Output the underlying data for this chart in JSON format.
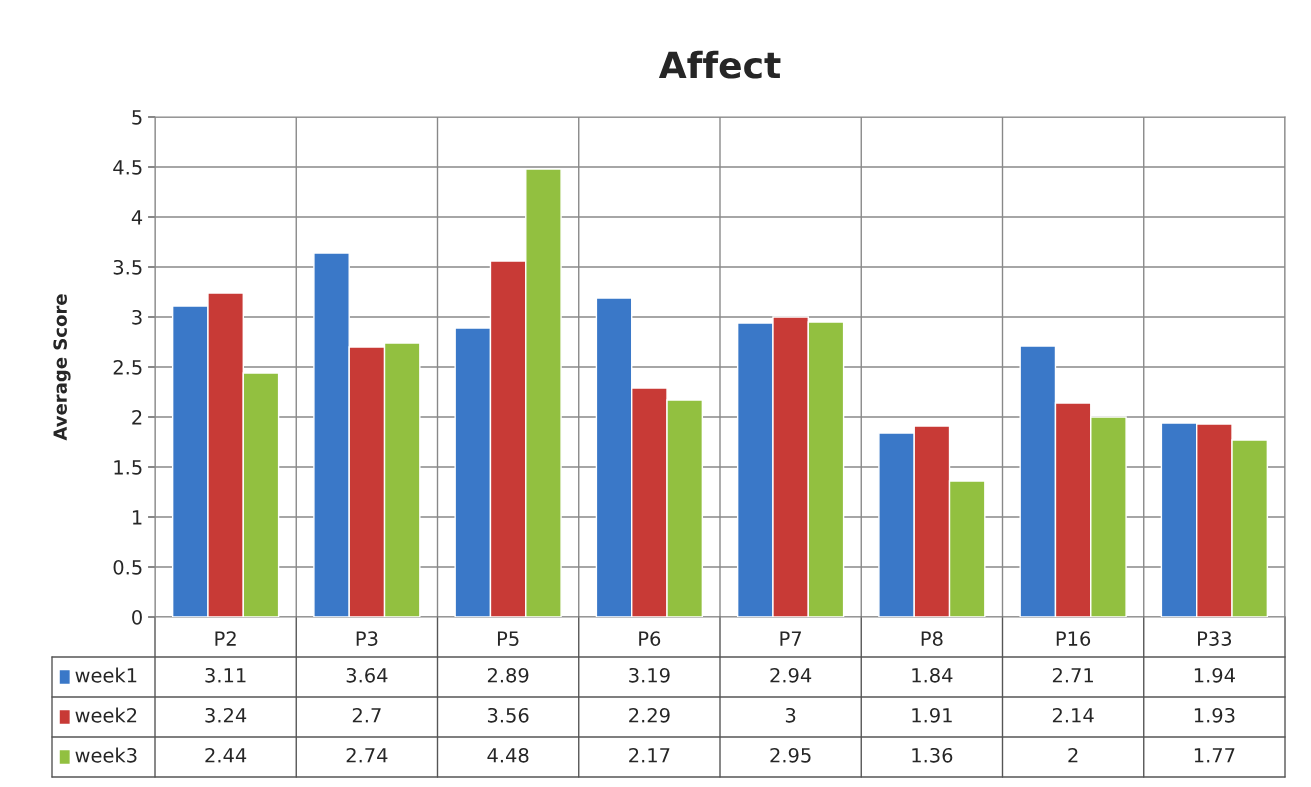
{
  "chart_data": {
    "type": "bar",
    "title": "Affect",
    "ylabel": "Average Score",
    "categories": [
      "P2",
      "P3",
      "P5",
      "P6",
      "P7",
      "P8",
      "P16",
      "P33"
    ],
    "series": [
      {
        "name": "week1",
        "color": "#3a78c8",
        "values": [
          3.11,
          3.64,
          2.89,
          3.19,
          2.94,
          1.84,
          2.71,
          1.94
        ]
      },
      {
        "name": "week2",
        "color": "#c83a36",
        "values": [
          3.24,
          2.7,
          3.56,
          2.29,
          3,
          1.91,
          2.14,
          1.93
        ]
      },
      {
        "name": "week3",
        "color": "#92c040",
        "values": [
          2.44,
          2.74,
          4.48,
          2.17,
          2.95,
          1.36,
          2,
          1.77
        ]
      }
    ],
    "ylim": [
      0,
      5
    ],
    "yticks": [
      0,
      0.5,
      1,
      1.5,
      2,
      2.5,
      3,
      3.5,
      4,
      4.5,
      5
    ],
    "grid": true,
    "legend": "bottom",
    "data_labels": true
  }
}
